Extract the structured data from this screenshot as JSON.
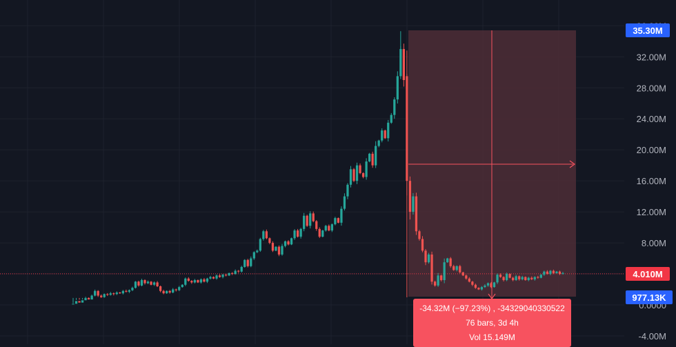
{
  "colors": {
    "background": "#131722",
    "grid": "#1e222d",
    "up": "#26a69a",
    "down": "#ef5350",
    "axis_text": "#b2b5be",
    "price_tag": "#2962ff",
    "current_tag": "#f23645",
    "measure_fill": "#4a2b35",
    "measure_line": "#f7525f",
    "info_box": "#f7525f"
  },
  "price_axis": {
    "ticks": [
      "36.00M",
      "32.00M",
      "28.00M",
      "24.00M",
      "20.00M",
      "16.00M",
      "12.00M",
      "8.00M",
      "4.00M",
      "0.0000",
      "-4.00M"
    ]
  },
  "price_tags": {
    "high": "35.30M",
    "current": "4.010M",
    "low": "977.13K"
  },
  "measure": {
    "line1": "-34.32M (−97.23%) , -34329040330522",
    "line2": "76 bars, 3d 4h",
    "line3": "Vol 15.149M"
  },
  "chart_data": {
    "type": "candlestick",
    "yunit": "M",
    "ylim": [
      -4,
      36
    ],
    "yticks": [
      36,
      32,
      28,
      24,
      20,
      16,
      12,
      8,
      4,
      0,
      -4
    ],
    "grid": true,
    "current_price": 4.01,
    "high_price": 35.3,
    "low_price": 0.977,
    "candles": [
      [
        0.1,
        0.15
      ],
      [
        0.15,
        0.5
      ],
      [
        0.5,
        0.3
      ],
      [
        0.3,
        0.6
      ],
      [
        0.6,
        0.9
      ],
      [
        0.9,
        0.7
      ],
      [
        0.7,
        1.2
      ],
      [
        1.2,
        1.8
      ],
      [
        1.8,
        1.2
      ],
      [
        1.2,
        1.0
      ],
      [
        1.0,
        1.4
      ],
      [
        1.4,
        1.3
      ],
      [
        1.3,
        1.5
      ],
      [
        1.5,
        1.4
      ],
      [
        1.4,
        1.6
      ],
      [
        1.6,
        1.5
      ],
      [
        1.5,
        1.8
      ],
      [
        1.8,
        1.7
      ],
      [
        1.7,
        1.9
      ],
      [
        1.9,
        2.2
      ],
      [
        2.2,
        3.0
      ],
      [
        3.0,
        2.5
      ],
      [
        2.5,
        3.2
      ],
      [
        3.2,
        2.8
      ],
      [
        2.8,
        3.0
      ],
      [
        3.0,
        2.6
      ],
      [
        2.6,
        2.9
      ],
      [
        2.9,
        2.4
      ],
      [
        2.4,
        1.8
      ],
      [
        1.8,
        1.5
      ],
      [
        1.5,
        1.8
      ],
      [
        1.8,
        1.6
      ],
      [
        1.6,
        2.0
      ],
      [
        2.0,
        1.9
      ],
      [
        1.9,
        2.3
      ],
      [
        2.3,
        2.6
      ],
      [
        2.6,
        3.4
      ],
      [
        3.4,
        3.1
      ],
      [
        3.1,
        2.9
      ],
      [
        2.9,
        3.2
      ],
      [
        3.2,
        2.9
      ],
      [
        2.9,
        3.3
      ],
      [
        3.3,
        3.0
      ],
      [
        3.0,
        3.4
      ],
      [
        3.4,
        3.6
      ],
      [
        3.6,
        3.4
      ],
      [
        3.4,
        3.8
      ],
      [
        3.8,
        3.6
      ],
      [
        3.6,
        3.9
      ],
      [
        3.9,
        3.8
      ],
      [
        3.8,
        4.1
      ],
      [
        4.1,
        4.0
      ],
      [
        4.0,
        4.4
      ],
      [
        4.4,
        4.3
      ],
      [
        4.3,
        4.9
      ],
      [
        4.9,
        5.8
      ],
      [
        5.8,
        5.0
      ],
      [
        5.0,
        6.0
      ],
      [
        6.0,
        6.8
      ],
      [
        6.8,
        7.0
      ],
      [
        7.0,
        8.5
      ],
      [
        8.5,
        9.5
      ],
      [
        9.5,
        8.6
      ],
      [
        8.6,
        8.0
      ],
      [
        8.0,
        7.0
      ],
      [
        7.0,
        7.5
      ],
      [
        7.5,
        6.5
      ],
      [
        6.5,
        7.6
      ],
      [
        7.6,
        8.2
      ],
      [
        8.2,
        7.8
      ],
      [
        7.8,
        8.6
      ],
      [
        8.6,
        9.6
      ],
      [
        9.6,
        8.8
      ],
      [
        8.8,
        9.8
      ],
      [
        9.8,
        11.5
      ],
      [
        11.5,
        10.2
      ],
      [
        10.2,
        11.8
      ],
      [
        11.8,
        10.8
      ],
      [
        10.8,
        9.8
      ],
      [
        9.8,
        8.8
      ],
      [
        8.8,
        9.6
      ],
      [
        9.6,
        10.2
      ],
      [
        10.2,
        9.6
      ],
      [
        9.6,
        10.4
      ],
      [
        10.4,
        11.2
      ],
      [
        11.2,
        10.6
      ],
      [
        10.6,
        12.4
      ],
      [
        12.4,
        14.0
      ],
      [
        14.0,
        15.5
      ],
      [
        15.5,
        17.5
      ],
      [
        17.5,
        16.0
      ],
      [
        16.0,
        18.0
      ],
      [
        18.0,
        17.0
      ],
      [
        17.0,
        16.5
      ],
      [
        16.5,
        18.5
      ],
      [
        18.5,
        19.5
      ],
      [
        19.5,
        18.0
      ],
      [
        18.0,
        20.5
      ],
      [
        20.5,
        21.2
      ],
      [
        21.2,
        22.5
      ],
      [
        22.5,
        21.5
      ],
      [
        21.5,
        23.5
      ],
      [
        23.5,
        24.5
      ],
      [
        24.5,
        26.5
      ],
      [
        26.5,
        29.5
      ],
      [
        29.5,
        33.0
      ],
      [
        33.0,
        29.0
      ],
      [
        29.5,
        16.0
      ],
      [
        16.0,
        12.0
      ],
      [
        12.0,
        14.0
      ],
      [
        14.0,
        9.5
      ],
      [
        9.5,
        8.5
      ],
      [
        8.5,
        7.0
      ],
      [
        7.0,
        5.5
      ],
      [
        5.5,
        6.5
      ],
      [
        6.5,
        3.0
      ],
      [
        3.0,
        2.5
      ],
      [
        2.5,
        3.8
      ],
      [
        3.8,
        3.2
      ],
      [
        3.2,
        5.5
      ],
      [
        5.5,
        6.0
      ],
      [
        6.0,
        5.0
      ],
      [
        5.0,
        4.5
      ],
      [
        4.5,
        5.0
      ],
      [
        5.0,
        4.2
      ],
      [
        4.2,
        3.8
      ],
      [
        3.8,
        3.4
      ],
      [
        3.4,
        3.0
      ],
      [
        3.0,
        2.6
      ],
      [
        2.6,
        2.2
      ],
      [
        2.2,
        2.0
      ],
      [
        2.0,
        2.3
      ],
      [
        2.3,
        2.5
      ],
      [
        2.5,
        2.8
      ],
      [
        2.8,
        2.3
      ],
      [
        2.3,
        2.9
      ],
      [
        2.9,
        3.9
      ],
      [
        3.9,
        3.6
      ],
      [
        3.6,
        3.2
      ],
      [
        3.2,
        4.0
      ],
      [
        4.0,
        3.5
      ],
      [
        3.5,
        3.2
      ],
      [
        3.2,
        3.7
      ],
      [
        3.7,
        3.3
      ],
      [
        3.3,
        3.6
      ],
      [
        3.6,
        3.2
      ],
      [
        3.2,
        3.5
      ],
      [
        3.5,
        3.3
      ],
      [
        3.3,
        3.6
      ],
      [
        3.6,
        3.5
      ],
      [
        3.5,
        3.9
      ],
      [
        3.9,
        4.3
      ],
      [
        4.3,
        4.0
      ],
      [
        4.0,
        4.4
      ],
      [
        4.4,
        4.1
      ],
      [
        4.1,
        4.3
      ],
      [
        4.3,
        4.0
      ],
      [
        4.0,
        4.1
      ]
    ]
  }
}
